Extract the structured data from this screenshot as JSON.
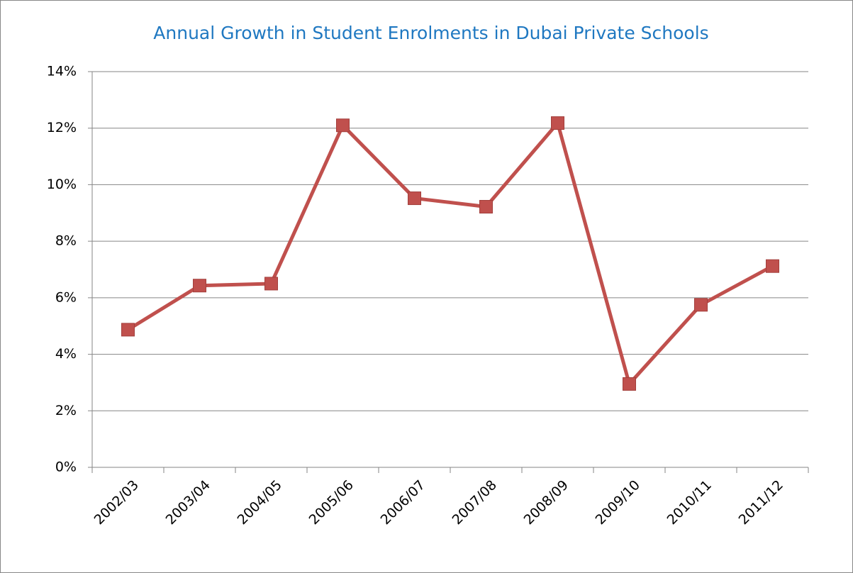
{
  "chart_data": {
    "type": "line",
    "title": "Annual Growth in Student Enrolments in Dubai Private Schools",
    "categories": [
      "2002/03",
      "2003/04",
      "2004/05",
      "2005/06",
      "2006/07",
      "2007/08",
      "2008/09",
      "2009/10",
      "2010/11",
      "2011/12"
    ],
    "series": [
      {
        "color": "#c0504d",
        "values": [
          4.87,
          6.43,
          6.5,
          12.1,
          9.52,
          9.22,
          12.18,
          2.95,
          5.75,
          7.12
        ]
      }
    ],
    "ylim": [
      0,
      14
    ],
    "yticks": [
      {
        "value": 0,
        "label": "0%"
      },
      {
        "value": 2,
        "label": "2%"
      },
      {
        "value": 4,
        "label": "4%"
      },
      {
        "value": 6,
        "label": "6%"
      },
      {
        "value": 8,
        "label": "8%"
      },
      {
        "value": 10,
        "label": "10%"
      },
      {
        "value": 12,
        "label": "12%"
      },
      {
        "value": 14,
        "label": "14%"
      }
    ],
    "grid": true
  }
}
